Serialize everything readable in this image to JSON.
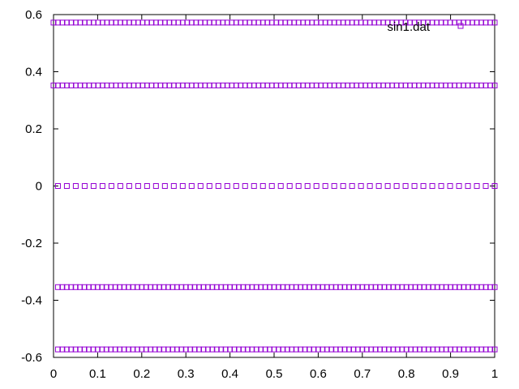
{
  "chart_data": {
    "type": "scatter",
    "xlim": [
      0,
      1
    ],
    "ylim": [
      -0.6,
      0.6
    ],
    "xticks": [
      0,
      0.1,
      0.2,
      0.3,
      0.4,
      0.5,
      0.6,
      0.7,
      0.8,
      0.9,
      1
    ],
    "xtick_labels": [
      "0",
      "0.1",
      "0.2",
      "0.3",
      "0.4",
      "0.5",
      "0.6",
      "0.7",
      "0.8",
      "0.9",
      "1"
    ],
    "yticks": [
      -0.6,
      -0.4,
      -0.2,
      0,
      0.2,
      0.4,
      0.6
    ],
    "ytick_labels": [
      "-0.6",
      "-0.4",
      "-0.2",
      "0",
      "0.2",
      "0.4",
      "0.6"
    ],
    "grid": false,
    "legend": "top-right",
    "series": [
      {
        "name": "sin1.dat",
        "color": "#9400d3",
        "marker": "open-square",
        "bands": [
          {
            "y": 0.572,
            "x_start": 0.0,
            "x_end": 1.0,
            "count": 100
          },
          {
            "y": 0.352,
            "x_start": 0.0,
            "x_end": 1.0,
            "count": 100
          },
          {
            "y": 0.0,
            "x_start": 0.01,
            "x_end": 1.0,
            "count": 50
          },
          {
            "y": -0.354,
            "x_start": 0.01,
            "x_end": 1.0,
            "count": 100
          },
          {
            "y": -0.572,
            "x_start": 0.01,
            "x_end": 1.0,
            "count": 100
          }
        ]
      }
    ]
  }
}
